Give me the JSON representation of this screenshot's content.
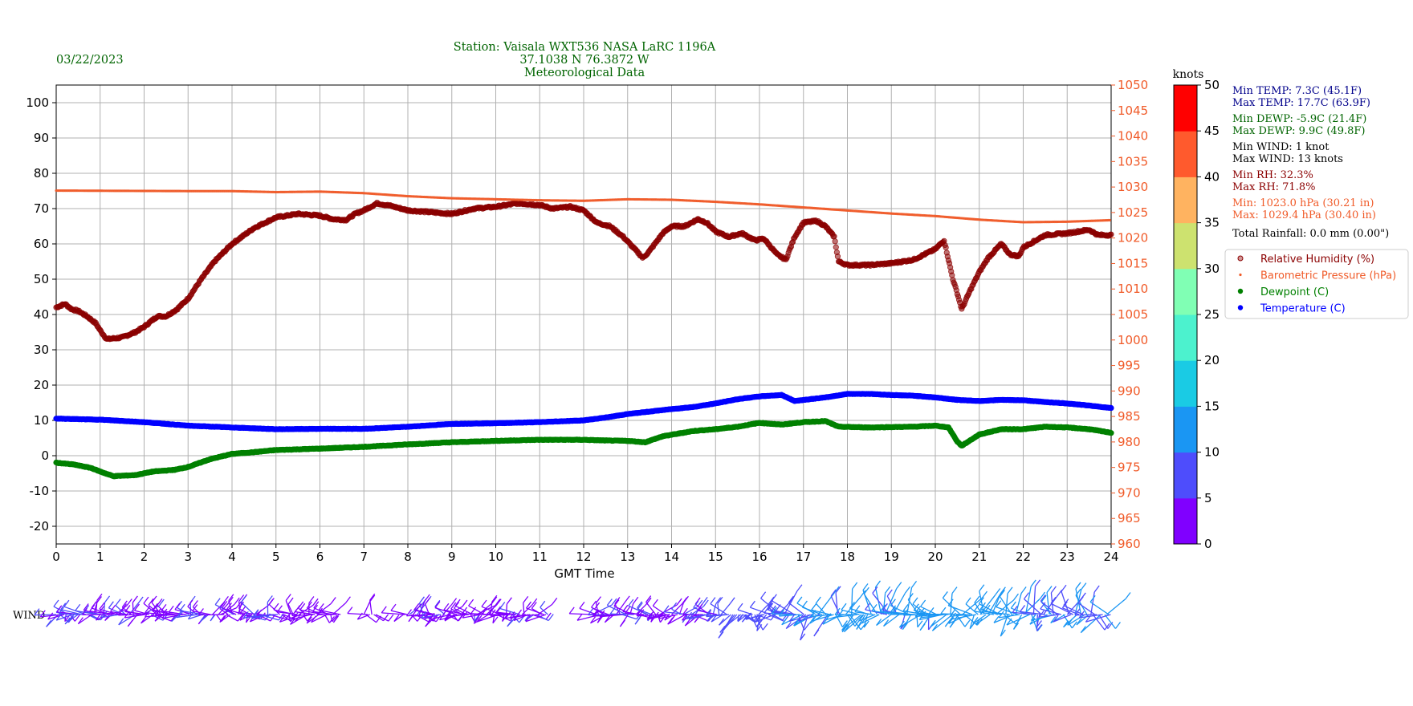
{
  "header": {
    "date": "03/22/2023",
    "title_lines": [
      "Station:  Vaisala WXT536  NASA LaRC 1196A",
      "37.1038 N 76.3872 W",
      "Meteorological Data"
    ]
  },
  "colors": {
    "humidity": "#8b0000",
    "pressure": "#f05a28",
    "dewpoint": "#008000",
    "temperature": "#0000ff",
    "title": "#006400",
    "stats_temp": "#00008b",
    "stats_rh": "#8b0000"
  },
  "stats": [
    {
      "text": "Min TEMP: 7.3C (45.1F)",
      "color": "#00008b"
    },
    {
      "text": "Max TEMP: 17.7C (63.9F)",
      "color": "#00008b"
    },
    {
      "text": "Min DEWP: -5.9C (21.4F)",
      "color": "#006400"
    },
    {
      "text": "Max DEWP: 9.9C (49.8F)",
      "color": "#006400"
    },
    {
      "text": "Min WIND: 1 knot",
      "color": "#000000"
    },
    {
      "text": "Max WIND: 13 knots",
      "color": "#000000"
    },
    {
      "text": "Min RH: 32.3%",
      "color": "#8b0000"
    },
    {
      "text": "Max RH: 71.8%",
      "color": "#8b0000"
    },
    {
      "text": "Min: 1023.0 hPa (30.21 in)",
      "color": "#f05a28"
    },
    {
      "text": "Max: 1029.4 hPa (30.40 in)",
      "color": "#f05a28"
    },
    {
      "text": "Total Rainfall: 0.0 mm (0.00\")",
      "color": "#000000"
    }
  ],
  "legend": [
    {
      "label": "Relative Humidity (%)",
      "color": "#8b0000",
      "marker": "hollow-dot"
    },
    {
      "label": "Barometric Pressure (hPa)",
      "color": "#f05a28",
      "marker": "small-dot"
    },
    {
      "label": "Dewpoint (C)",
      "color": "#008000",
      "marker": "dot"
    },
    {
      "label": "Temperature (C)",
      "color": "#0000ff",
      "marker": "dot"
    }
  ],
  "colorbar": {
    "label": "knots",
    "ticks": [
      0,
      5,
      10,
      15,
      20,
      25,
      30,
      35,
      40,
      45,
      50
    ],
    "colors": [
      "#8000ff",
      "#4e4dfc",
      "#1a96f3",
      "#1acbe4",
      "#4cf2ce",
      "#80ffb4",
      "#cde26f",
      "#ffb360",
      "#ff5a2d",
      "#ff0000"
    ]
  },
  "wind_label": "WIND",
  "chart_data": {
    "type": "scatter",
    "xlabel": "GMT Time",
    "xlim": [
      0,
      24
    ],
    "xticks": [
      0,
      1,
      2,
      3,
      4,
      5,
      6,
      7,
      8,
      9,
      10,
      11,
      12,
      13,
      14,
      15,
      16,
      17,
      18,
      19,
      20,
      21,
      22,
      23,
      24
    ],
    "left_axis": {
      "ylim": [
        -25,
        105
      ],
      "ticks": [
        -20,
        -10,
        0,
        10,
        20,
        30,
        40,
        50,
        60,
        70,
        80,
        90,
        100
      ]
    },
    "right_axis": {
      "ylim": [
        960,
        1050
      ],
      "ticks": [
        960,
        965,
        970,
        975,
        980,
        985,
        990,
        995,
        1000,
        1005,
        1010,
        1015,
        1020,
        1025,
        1030,
        1035,
        1040,
        1045,
        1050
      ],
      "color": "#f05a28"
    },
    "grid": true,
    "legend_position": "right",
    "series": [
      {
        "name": "Relative Humidity (%)",
        "axis": "left",
        "points": [
          [
            0,
            42
          ],
          [
            0.2,
            43
          ],
          [
            0.35,
            41.5
          ],
          [
            0.5,
            41
          ],
          [
            0.7,
            39.5
          ],
          [
            0.9,
            37.5
          ],
          [
            1.0,
            35.5
          ],
          [
            1.15,
            33
          ],
          [
            1.5,
            33.5
          ],
          [
            1.8,
            35
          ],
          [
            2.0,
            36.5
          ],
          [
            2.3,
            39.5
          ],
          [
            2.5,
            39.5
          ],
          [
            2.75,
            41.5
          ],
          [
            3.0,
            44.5
          ],
          [
            3.3,
            50
          ],
          [
            3.6,
            55
          ],
          [
            4.0,
            60
          ],
          [
            4.5,
            64.5
          ],
          [
            5.0,
            67.5
          ],
          [
            5.5,
            68.5
          ],
          [
            6.0,
            68
          ],
          [
            6.3,
            67
          ],
          [
            6.6,
            66.8
          ],
          [
            6.8,
            68.5
          ],
          [
            7.0,
            69.5
          ],
          [
            7.3,
            71.5
          ],
          [
            7.6,
            70.8
          ],
          [
            8.0,
            69.5
          ],
          [
            8.5,
            69
          ],
          [
            9.0,
            68.5
          ],
          [
            9.5,
            70
          ],
          [
            10.0,
            70.5
          ],
          [
            10.5,
            71.5
          ],
          [
            11.0,
            71
          ],
          [
            11.3,
            70
          ],
          [
            11.7,
            70.5
          ],
          [
            12.0,
            69.5
          ],
          [
            12.3,
            66
          ],
          [
            12.6,
            65
          ],
          [
            12.9,
            62
          ],
          [
            13.2,
            58
          ],
          [
            13.35,
            56
          ],
          [
            13.5,
            58
          ],
          [
            13.8,
            63
          ],
          [
            14.0,
            65
          ],
          [
            14.3,
            65
          ],
          [
            14.6,
            67
          ],
          [
            14.8,
            66
          ],
          [
            15.0,
            63.5
          ],
          [
            15.3,
            62
          ],
          [
            15.6,
            63
          ],
          [
            15.9,
            61
          ],
          [
            16.1,
            61.5
          ],
          [
            16.4,
            57
          ],
          [
            16.6,
            55.5
          ],
          [
            16.8,
            62
          ],
          [
            17.0,
            66
          ],
          [
            17.3,
            66.5
          ],
          [
            17.5,
            65
          ],
          [
            17.7,
            62
          ],
          [
            17.8,
            55
          ],
          [
            18.0,
            54
          ],
          [
            18.5,
            54
          ],
          [
            19.0,
            54.5
          ],
          [
            19.5,
            55.5
          ],
          [
            20.0,
            58.5
          ],
          [
            20.2,
            61
          ],
          [
            20.4,
            50
          ],
          [
            20.5,
            46
          ],
          [
            20.6,
            41.5
          ],
          [
            20.8,
            47
          ],
          [
            21.0,
            52
          ],
          [
            21.2,
            56
          ],
          [
            21.5,
            60
          ],
          [
            21.7,
            57
          ],
          [
            21.9,
            56.5
          ],
          [
            22.0,
            59
          ],
          [
            22.5,
            62.5
          ],
          [
            23.0,
            63
          ],
          [
            23.5,
            64
          ],
          [
            23.7,
            62.5
          ],
          [
            24.0,
            62.5
          ]
        ]
      },
      {
        "name": "Barometric Pressure (hPa)",
        "axis": "right",
        "points": [
          [
            0,
            1029.3
          ],
          [
            3.0,
            1029.2
          ],
          [
            4.0,
            1029.2
          ],
          [
            5.0,
            1029.0
          ],
          [
            6.0,
            1029.1
          ],
          [
            7.0,
            1028.8
          ],
          [
            8.0,
            1028.2
          ],
          [
            9.0,
            1027.8
          ],
          [
            10.0,
            1027.6
          ],
          [
            11.0,
            1027.4
          ],
          [
            12.0,
            1027.3
          ],
          [
            13.0,
            1027.6
          ],
          [
            14.0,
            1027.5
          ],
          [
            15.0,
            1027.1
          ],
          [
            16.0,
            1026.6
          ],
          [
            17.0,
            1026.0
          ],
          [
            18.0,
            1025.4
          ],
          [
            19.0,
            1024.8
          ],
          [
            20.0,
            1024.3
          ],
          [
            21.0,
            1023.6
          ],
          [
            22.0,
            1023.1
          ],
          [
            23.0,
            1023.2
          ],
          [
            24.0,
            1023.5
          ]
        ]
      },
      {
        "name": "Dewpoint (C)",
        "axis": "left",
        "points": [
          [
            0,
            -2
          ],
          [
            0.4,
            -2.5
          ],
          [
            0.8,
            -3.5
          ],
          [
            1.0,
            -4.5
          ],
          [
            1.3,
            -5.8
          ],
          [
            1.8,
            -5.5
          ],
          [
            2.2,
            -4.5
          ],
          [
            2.7,
            -4
          ],
          [
            3.0,
            -3.2
          ],
          [
            3.5,
            -1
          ],
          [
            4.0,
            0.5
          ],
          [
            4.5,
            1
          ],
          [
            5.0,
            1.6
          ],
          [
            6.0,
            2
          ],
          [
            7.0,
            2.5
          ],
          [
            8.0,
            3.2
          ],
          [
            9.0,
            3.8
          ],
          [
            10.0,
            4.2
          ],
          [
            11.0,
            4.5
          ],
          [
            12.0,
            4.5
          ],
          [
            12.5,
            4.3
          ],
          [
            13.0,
            4.2
          ],
          [
            13.4,
            3.8
          ],
          [
            13.8,
            5.5
          ],
          [
            14.5,
            7
          ],
          [
            15.0,
            7.5
          ],
          [
            15.5,
            8.2
          ],
          [
            16.0,
            9.3
          ],
          [
            16.5,
            8.8
          ],
          [
            17.0,
            9.5
          ],
          [
            17.5,
            9.8
          ],
          [
            17.8,
            8.2
          ],
          [
            18.5,
            8
          ],
          [
            19.5,
            8.2
          ],
          [
            20.0,
            8.5
          ],
          [
            20.3,
            8
          ],
          [
            20.5,
            4
          ],
          [
            20.6,
            2.8
          ],
          [
            21.0,
            6
          ],
          [
            21.5,
            7.5
          ],
          [
            22.0,
            7.5
          ],
          [
            22.5,
            8.2
          ],
          [
            23.0,
            8
          ],
          [
            23.5,
            7.5
          ],
          [
            24.0,
            6.5
          ]
        ]
      },
      {
        "name": "Temperature (C)",
        "axis": "left",
        "points": [
          [
            0,
            10.5
          ],
          [
            1.0,
            10.2
          ],
          [
            2.0,
            9.5
          ],
          [
            3.0,
            8.5
          ],
          [
            4.0,
            8
          ],
          [
            5.0,
            7.5
          ],
          [
            6.0,
            7.6
          ],
          [
            7.0,
            7.6
          ],
          [
            8.0,
            8.2
          ],
          [
            9.0,
            9
          ],
          [
            10.0,
            9.2
          ],
          [
            11.0,
            9.5
          ],
          [
            12.0,
            10
          ],
          [
            12.5,
            10.8
          ],
          [
            13.0,
            11.8
          ],
          [
            13.5,
            12.5
          ],
          [
            14.0,
            13.2
          ],
          [
            14.5,
            13.8
          ],
          [
            15.0,
            14.8
          ],
          [
            15.5,
            16
          ],
          [
            16.0,
            16.8
          ],
          [
            16.5,
            17.2
          ],
          [
            16.8,
            15.5
          ],
          [
            17.5,
            16.5
          ],
          [
            18.0,
            17.5
          ],
          [
            18.5,
            17.5
          ],
          [
            19.0,
            17.2
          ],
          [
            19.5,
            17
          ],
          [
            20.0,
            16.5
          ],
          [
            20.5,
            15.8
          ],
          [
            21.0,
            15.5
          ],
          [
            21.5,
            15.8
          ],
          [
            22.0,
            15.7
          ],
          [
            22.5,
            15.2
          ],
          [
            23.0,
            14.8
          ],
          [
            23.5,
            14.2
          ],
          [
            24.0,
            13.5
          ]
        ]
      }
    ],
    "wind_segments": [
      [
        0,
        5.2
      ],
      [
        5.3,
        6.5
      ],
      [
        7.0,
        7.3
      ],
      [
        7.9,
        11.2
      ],
      [
        12.2,
        24
      ]
    ],
    "wind_speed_profile": [
      [
        0,
        4
      ],
      [
        5,
        3
      ],
      [
        6,
        2
      ],
      [
        7,
        1
      ],
      [
        8,
        3
      ],
      [
        11,
        3
      ],
      [
        12.2,
        3
      ],
      [
        14,
        4
      ],
      [
        15,
        5
      ],
      [
        16,
        7
      ],
      [
        17,
        9
      ],
      [
        18,
        11
      ],
      [
        19,
        10
      ],
      [
        20,
        11
      ],
      [
        21,
        12
      ],
      [
        22,
        10
      ],
      [
        23,
        9
      ],
      [
        24,
        9
      ]
    ]
  }
}
